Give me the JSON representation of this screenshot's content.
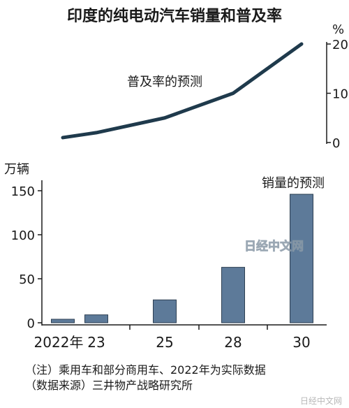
{
  "chart_data": [
    {
      "type": "line",
      "title": "印度的纯电动汽车销量和普及率",
      "unit": "%",
      "annotation": "普及率的预测",
      "x": [
        "2022",
        "2023",
        "2025",
        "2028",
        "2030"
      ],
      "values": [
        1,
        2,
        5,
        10,
        20
      ],
      "yticks": [
        "0",
        "10",
        "20"
      ],
      "ylim": [
        0,
        20
      ],
      "line_color": "#1f3a4c",
      "grid": false
    },
    {
      "type": "bar",
      "unit": "万辆",
      "annotation": "销量的预测",
      "categories": [
        "2022",
        "2023",
        "2025",
        "2028",
        "2030"
      ],
      "xtick_labels": [
        "2022年",
        "23",
        "25",
        "28",
        "30"
      ],
      "values": [
        4,
        9,
        26,
        63,
        146
      ],
      "yticks": [
        "0",
        "50",
        "100",
        "150"
      ],
      "ylim": [
        0,
        150
      ],
      "bar_color": "#5d7a99",
      "grid": false
    }
  ],
  "notes": [
    "（注）乘用车和部分商用车、2022年为实际数据",
    "（数据来源）三井物产战略研究所"
  ],
  "watermarks": [
    "日经中文网",
    "日经中文网"
  ]
}
